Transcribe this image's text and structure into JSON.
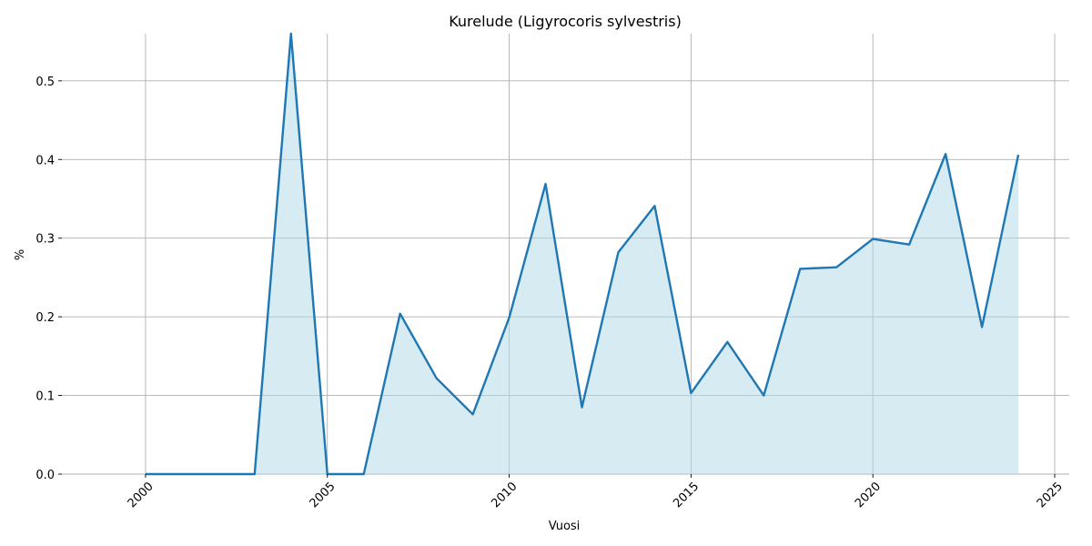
{
  "chart_data": {
    "type": "area",
    "title": "Kurelude (Ligyrocoris sylvestris)",
    "xlabel": "Vuosi",
    "ylabel": "%",
    "xlim": [
      1997.7,
      2025.4
    ],
    "ylim": [
      0,
      0.56
    ],
    "xticks": [
      2000,
      2005,
      2010,
      2015,
      2020,
      2025
    ],
    "yticks": [
      0.0,
      0.1,
      0.2,
      0.3,
      0.4,
      0.5
    ],
    "xtick_labels": [
      "2000",
      "2005",
      "2010",
      "2015",
      "2020",
      "2025"
    ],
    "ytick_labels": [
      "0.0",
      "0.1",
      "0.2",
      "0.3",
      "0.4",
      "0.5"
    ],
    "grid": true,
    "line_color": "#1f77b4",
    "fill_color": "#add8e6",
    "series": [
      {
        "x": [
          2000,
          2001,
          2002,
          2003,
          2004,
          2005,
          2006,
          2007,
          2008,
          2009,
          2010,
          2011,
          2012,
          2013,
          2014,
          2015,
          2016,
          2017,
          2018,
          2019,
          2020,
          2021,
          2022,
          2023,
          2024
        ],
        "values": [
          0,
          0,
          0,
          0,
          0.56,
          0,
          0,
          0.204,
          0.122,
          0.076,
          0.199,
          0.369,
          0.085,
          0.282,
          0.341,
          0.103,
          0.168,
          0.1,
          0.261,
          0.263,
          0.299,
          0.292,
          0.407,
          0.187,
          0.406
        ]
      }
    ]
  }
}
